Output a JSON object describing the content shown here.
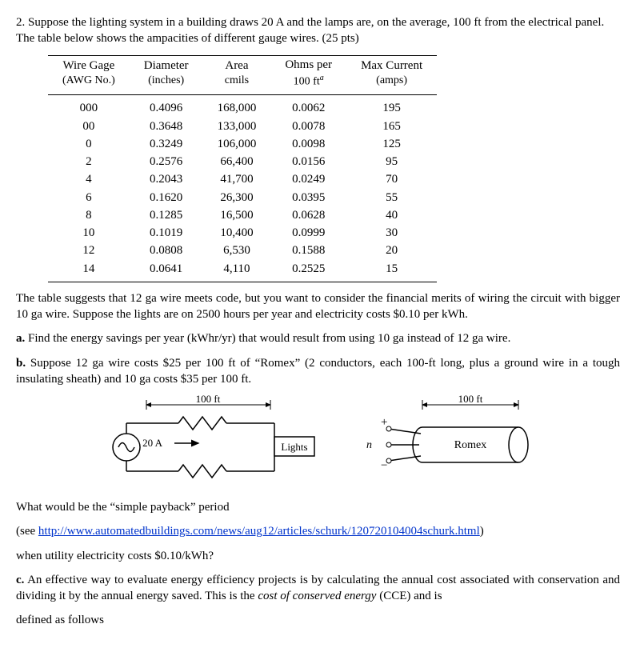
{
  "problem": {
    "number": "2.",
    "intro": "Suppose the lighting system in a building draws 20 A and the lamps are, on the average, 100 ft from the electrical panel. The table below shows the ampacities of different gauge wires. (25 pts)"
  },
  "table": {
    "headers": {
      "c1a": "Wire Gage",
      "c1b": "(AWG No.)",
      "c2a": "Diameter",
      "c2b": "(inches)",
      "c3a": "Area",
      "c3b": "cmils",
      "c4a": "Ohms per",
      "c4b": "100 ft",
      "c5a": "Max Current",
      "c5b": "(amps)"
    },
    "rows": [
      {
        "g": "000",
        "d": "0.4096",
        "a": "168,000",
        "o": "0.0062",
        "m": "195"
      },
      {
        "g": "00",
        "d": "0.3648",
        "a": "133,000",
        "o": "0.0078",
        "m": "165"
      },
      {
        "g": "0",
        "d": "0.3249",
        "a": "106,000",
        "o": "0.0098",
        "m": "125"
      },
      {
        "g": "2",
        "d": "0.2576",
        "a": "66,400",
        "o": "0.0156",
        "m": "95"
      },
      {
        "g": "4",
        "d": "0.2043",
        "a": "41,700",
        "o": "0.0249",
        "m": "70"
      },
      {
        "g": "6",
        "d": "0.1620",
        "a": "26,300",
        "o": "0.0395",
        "m": "55"
      },
      {
        "g": "8",
        "d": "0.1285",
        "a": "16,500",
        "o": "0.0628",
        "m": "40"
      },
      {
        "g": "10",
        "d": "0.1019",
        "a": "10,400",
        "o": "0.0999",
        "m": "30"
      },
      {
        "g": "12",
        "d": "0.0808",
        "a": "6,530",
        "o": "0.1588",
        "m": "20"
      },
      {
        "g": "14",
        "d": "0.0641",
        "a": "4,110",
        "o": "0.2525",
        "m": "15"
      }
    ]
  },
  "body": {
    "after_table": "The table suggests that 12 ga wire meets code, but you want to consider the financial merits of wiring the circuit with bigger 10 ga wire. Suppose the lights are on 2500 hours per year and electricity costs $0.10 per kWh.",
    "part_a_label": "a.",
    "part_a": "Find the energy savings per year (kWhr/yr) that would result from using 10 ga instead of 12 ga wire.",
    "part_b_label": "b.",
    "part_b": "Suppose 12 ga wire costs $25 per 100 ft of “Romex” (2 conductors, each 100-ft long, plus a ground wire in a tough insulating sheath) and 10 ga costs $35 per 100 ft.",
    "payback_q": "What would be the “simple payback” period",
    "see": "(see ",
    "link": "http://www.automatedbuildings.com/news/aug12/articles/schurk/120720104004schurk.html",
    "see_close": ")",
    "when": "when utility electricity costs $0.10/kWh?",
    "part_c_label": "c.",
    "part_c": "An effective way to evaluate energy efficiency projects is by calculating the annual cost associated with conservation and dividing it by the annual energy saved. This is the ",
    "cce": "cost of conserved energy",
    "part_c_tail": " (CCE) and is",
    "defined": "defined as follows"
  },
  "diagram": {
    "len": "100 ft",
    "current": "20 A",
    "load": "Lights",
    "cable": "Romex",
    "n": "n"
  }
}
